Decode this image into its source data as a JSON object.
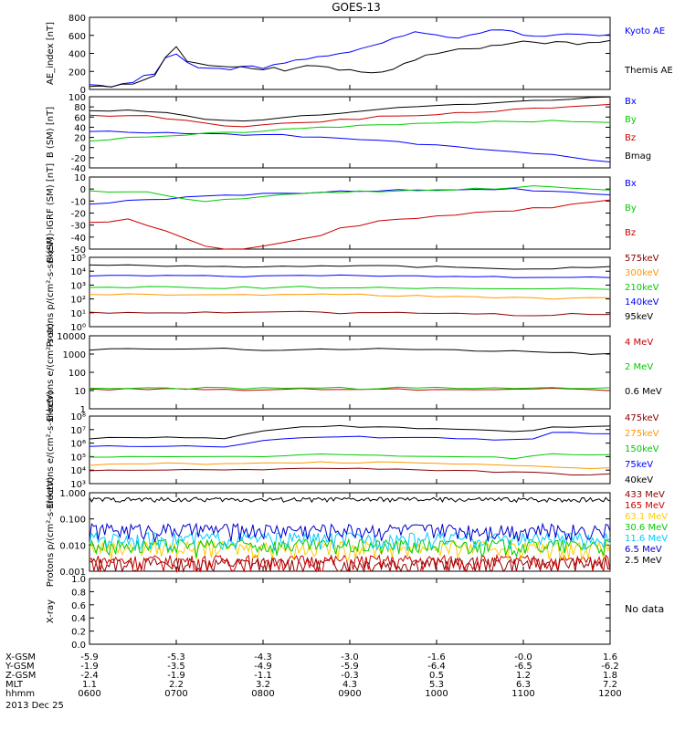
{
  "title": "GOES-13",
  "date_label": "2013 Dec 25",
  "no_data_label": "No data",
  "chart_data": [
    {
      "type": "line",
      "ylabel": "AE_index [nT]",
      "ylim": [
        0,
        800
      ],
      "yscale": "linear",
      "yticks": [
        "0",
        "200",
        "400",
        "600",
        "800"
      ],
      "series": [
        {
          "name": "Kyoto AE",
          "color": "#0000ff",
          "values": [
            50,
            40,
            35,
            60,
            80,
            150,
            180,
            350,
            390,
            300,
            250,
            240,
            230,
            220,
            260,
            250,
            240,
            280,
            300,
            320,
            330,
            360,
            380,
            400,
            420,
            450,
            480,
            520,
            560,
            600,
            640,
            620,
            600,
            580,
            560,
            600,
            620,
            650,
            660,
            640,
            610,
            600,
            590,
            600,
            610,
            620,
            600,
            600,
            610
          ]
        },
        {
          "name": "Themis AE",
          "color": "#000000",
          "values": [
            35,
            30,
            30,
            50,
            70,
            100,
            150,
            350,
            470,
            320,
            280,
            260,
            250,
            240,
            250,
            230,
            220,
            240,
            200,
            230,
            260,
            270,
            240,
            220,
            210,
            200,
            180,
            200,
            230,
            280,
            330,
            380,
            400,
            420,
            440,
            450,
            460,
            480,
            500,
            520,
            530,
            520,
            510,
            530,
            520,
            500,
            520,
            530,
            540
          ]
        }
      ]
    },
    {
      "type": "line",
      "ylabel": "B (SM) [nT]",
      "ylim": [
        -40,
        100
      ],
      "yscale": "linear",
      "yticks": [
        "-40",
        "-20",
        "0",
        "20",
        "40",
        "60",
        "80",
        "100"
      ],
      "series": [
        {
          "name": "Bx",
          "color": "#0000ff",
          "values": [
            32,
            31,
            30,
            30,
            29,
            28,
            28,
            27,
            26,
            25,
            24,
            22,
            20,
            18,
            16,
            13,
            10,
            7,
            4,
            1,
            -2,
            -5,
            -8,
            -11,
            -15,
            -20,
            -25,
            -30
          ]
        },
        {
          "name": "By",
          "color": "#00cc00",
          "values": [
            14,
            17,
            19,
            21,
            23,
            25,
            27,
            29,
            31,
            33,
            35,
            37,
            39,
            41,
            43,
            45,
            46,
            47,
            48,
            49,
            50,
            51,
            52,
            52,
            53,
            52,
            50,
            48
          ]
        },
        {
          "name": "Bz",
          "color": "#cc0000",
          "values": [
            62,
            63,
            64,
            62,
            58,
            54,
            48,
            44,
            42,
            44,
            47,
            50,
            52,
            55,
            57,
            60,
            62,
            64,
            66,
            68,
            70,
            72,
            74,
            76,
            78,
            80,
            82,
            84
          ]
        },
        {
          "name": "Bmag",
          "color": "#000000",
          "values": [
            72,
            73,
            74,
            72,
            68,
            63,
            57,
            54,
            53,
            55,
            58,
            62,
            65,
            68,
            72,
            75,
            78,
            80,
            82,
            84,
            86,
            88,
            90,
            92,
            94,
            96,
            98,
            99
          ]
        }
      ]
    },
    {
      "type": "line",
      "ylabel": "B (SM)-IGRF (SM) [nT]",
      "ylim": [
        -50,
        10
      ],
      "yscale": "linear",
      "yticks": [
        "-50",
        "-40",
        "-30",
        "-20",
        "-10",
        "0",
        "10"
      ],
      "series": [
        {
          "name": "Bx",
          "color": "#0000ff",
          "values": [
            -12,
            -11,
            -10,
            -9,
            -8,
            -7,
            -6,
            -5,
            -5,
            -4,
            -4,
            -3,
            -3,
            -2,
            -2,
            -2,
            -1,
            -1,
            -1,
            -1,
            -1,
            0,
            0,
            -1,
            -2,
            -3,
            -4,
            -5
          ]
        },
        {
          "name": "By",
          "color": "#00cc00",
          "values": [
            -2,
            -2,
            -2,
            -3,
            -6,
            -9,
            -10,
            -9,
            -8,
            -6,
            -5,
            -4,
            -3,
            -3,
            -2,
            -2,
            -1,
            -1,
            -1,
            -1,
            0,
            0,
            1,
            2,
            2,
            1,
            0,
            -1
          ]
        },
        {
          "name": "Bz",
          "color": "#cc0000",
          "values": [
            -28,
            -27,
            -25,
            -30,
            -35,
            -42,
            -48,
            -51,
            -50,
            -48,
            -45,
            -41,
            -38,
            -33,
            -30,
            -27,
            -25,
            -24,
            -23,
            -22,
            -20,
            -19,
            -18,
            -16,
            -15,
            -13,
            -11,
            -9
          ]
        }
      ]
    },
    {
      "type": "line",
      "ylabel": "Protons p/(cm²-s-sr-keV)",
      "ylim": [
        0,
        5
      ],
      "yscale": "log",
      "log_range": [
        1,
        100000
      ],
      "yticks": [
        "10⁰",
        "10¹",
        "10²",
        "10³",
        "10⁴",
        "10⁵"
      ],
      "series": [
        {
          "name": "575keV",
          "color": "#8b0000",
          "values": [
            10,
            10,
            11,
            11,
            10,
            10,
            10,
            10,
            10,
            10,
            11,
            11,
            11,
            10,
            10,
            10,
            10,
            10,
            9,
            9,
            8,
            8,
            7,
            7,
            7,
            8,
            8,
            8
          ]
        },
        {
          "name": "300keV",
          "color": "#ff9900",
          "values": [
            200,
            210,
            220,
            220,
            210,
            200,
            200,
            190,
            190,
            190,
            200,
            210,
            210,
            200,
            200,
            190,
            180,
            170,
            160,
            150,
            140,
            130,
            120,
            110,
            110,
            120,
            130,
            130
          ]
        },
        {
          "name": "210keV",
          "color": "#00cc00",
          "values": [
            700,
            720,
            730,
            720,
            700,
            680,
            660,
            650,
            650,
            660,
            680,
            700,
            700,
            690,
            680,
            660,
            640,
            620,
            600,
            580,
            560,
            540,
            520,
            500,
            500,
            520,
            540,
            550
          ]
        },
        {
          "name": "140keV",
          "color": "#0000ff",
          "values": [
            5000,
            5100,
            5200,
            5100,
            5000,
            4800,
            4600,
            4500,
            4500,
            4600,
            4800,
            5000,
            5000,
            4900,
            4800,
            4700,
            4600,
            4500,
            4300,
            4100,
            4000,
            3800,
            3600,
            3500,
            3500,
            3700,
            3900,
            4000
          ]
        },
        {
          "name": "95keV",
          "color": "#000000",
          "values": [
            25000,
            26000,
            27000,
            26000,
            25000,
            24000,
            23000,
            22000,
            22000,
            23000,
            24000,
            25000,
            25000,
            24000,
            23000,
            23000,
            22000,
            21000,
            20000,
            19000,
            18000,
            17000,
            16000,
            15000,
            15000,
            17000,
            18000,
            19000
          ]
        }
      ]
    },
    {
      "type": "line",
      "ylabel": "Electrons e/(cm²-s-sr)",
      "ylim": [
        0,
        4
      ],
      "yscale": "log",
      "log_range": [
        1,
        10000
      ],
      "yticks": [
        "1",
        "10",
        "100",
        "1000",
        "10000"
      ],
      "series": [
        {
          "name": "4 MeV",
          "color": "#cc0000",
          "values": [
            12,
            11,
            12,
            11,
            12,
            11,
            12,
            12,
            11,
            12,
            11,
            12,
            11,
            12,
            11,
            12,
            12,
            11,
            12,
            11,
            12,
            11,
            12,
            11,
            12,
            11,
            12,
            11
          ]
        },
        {
          "name": "2 MeV",
          "color": "#00cc00",
          "values": [
            14,
            13,
            14,
            13,
            14,
            13,
            14,
            14,
            13,
            14,
            13,
            14,
            13,
            14,
            13,
            14,
            14,
            13,
            14,
            13,
            14,
            13,
            14,
            13,
            14,
            13,
            14,
            13
          ]
        },
        {
          "name": "0.6 MeV",
          "color": "#000000",
          "values": [
            1800,
            1900,
            2000,
            2000,
            2000,
            2100,
            2000,
            1900,
            1800,
            1700,
            1600,
            1600,
            1700,
            1800,
            1900,
            2000,
            2000,
            1900,
            1800,
            1700,
            1600,
            1500,
            1400,
            1300,
            1200,
            1100,
            1000,
            1000
          ]
        }
      ]
    },
    {
      "type": "line",
      "ylabel": "Electrons e/(cm²-s-sr-keV)",
      "ylim": [
        2,
        8
      ],
      "yscale": "log",
      "log_range": [
        100,
        100000000
      ],
      "yticks": [
        "10³",
        "10⁴",
        "10⁵",
        "10⁶",
        "10⁷",
        "10⁸"
      ],
      "series": [
        {
          "name": "475keV",
          "color": "#8b0000",
          "values": [
            1500,
            1600,
            1700,
            1800,
            1800,
            1800,
            1700,
            1700,
            1800,
            1900,
            2000,
            2100,
            2200,
            2200,
            2100,
            2000,
            1900,
            1800,
            1700,
            1500,
            1300,
            1100,
            1000,
            900,
            800,
            700,
            700,
            700
          ]
        },
        {
          "name": "275keV",
          "color": "#ff9900",
          "values": [
            5000,
            5200,
            5500,
            5800,
            6000,
            6000,
            5800,
            5700,
            6000,
            6500,
            7000,
            7500,
            8000,
            8000,
            7800,
            7500,
            7000,
            6500,
            6000,
            5500,
            5000,
            4500,
            4000,
            3500,
            3000,
            2500,
            2500,
            2500
          ]
        },
        {
          "name": "150keV",
          "color": "#00cc00",
          "values": [
            20000,
            21000,
            22000,
            23000,
            24000,
            24000,
            23000,
            22000,
            24000,
            27000,
            30000,
            33000,
            36000,
            37000,
            36000,
            34000,
            32000,
            30000,
            28000,
            25000,
            22000,
            20000,
            18000,
            30000,
            50000,
            45000,
            40000,
            38000
          ]
        },
        {
          "name": "75keV",
          "color": "#0000ff",
          "values": [
            200000,
            210000,
            220000,
            230000,
            230000,
            220000,
            210000,
            200000,
            300000,
            600000,
            1000000,
            1300000,
            1500000,
            1600000,
            1500000,
            1400000,
            1300000,
            1200000,
            1100000,
            1000000,
            900000,
            800000,
            700000,
            1000000,
            3000000,
            3500000,
            3000000,
            2800000
          ]
        },
        {
          "name": "40keV",
          "color": "#000000",
          "values": [
            1000000,
            1100000,
            1200000,
            1200000,
            1200000,
            1100000,
            1000000,
            1000000,
            2000000,
            5000000,
            8000000,
            10000000,
            12000000,
            13000000,
            12000000,
            11000000,
            10000000,
            9000000,
            8000000,
            7000000,
            6000000,
            5000000,
            4000000,
            6000000,
            10000000,
            12000000,
            13000000,
            14000000
          ]
        }
      ]
    },
    {
      "type": "line",
      "ylabel": "Protons p/(cm²-s-sr-keV)",
      "ylim": [
        -3,
        0.5
      ],
      "yscale": "log",
      "log_range": [
        0.001,
        3
      ],
      "yticks": [
        "0.001",
        "0.010",
        "0.100",
        "1.000"
      ],
      "series": [
        {
          "name": "433 MeV",
          "color": "#8b0000",
          "base": 0.0015
        },
        {
          "name": "165 MeV",
          "color": "#cc0000",
          "base": 0.002
        },
        {
          "name": "63.1 MeV",
          "color": "#ffcc00",
          "base": 0.008
        },
        {
          "name": "30.6 MeV",
          "color": "#00cc00",
          "base": 0.01
        },
        {
          "name": "11.6 MeV",
          "color": "#00ccff",
          "base": 0.02
        },
        {
          "name": "6.5 MeV",
          "color": "#0000cc",
          "base": 0.05
        },
        {
          "name": "2.5 MeV",
          "color": "#000000",
          "base": 1.5
        }
      ]
    },
    {
      "type": "line",
      "ylabel": "X-ray",
      "ylim": [
        0,
        1
      ],
      "yscale": "linear",
      "yticks": [
        "0.0",
        "0.2",
        "0.4",
        "0.6",
        "0.8",
        "1.0"
      ],
      "series": []
    }
  ],
  "x_axis": {
    "row_labels": [
      "X-GSM",
      "Y-GSM",
      "Z-GSM",
      "MLT",
      "hhmm"
    ],
    "columns": [
      [
        "-5.9",
        "-1.9",
        "-2.4",
        "1.1",
        "0600"
      ],
      [
        "-5.3",
        "-3.5",
        "-1.9",
        "2.2",
        "0700"
      ],
      [
        "-4.3",
        "-4.9",
        "-1.1",
        "3.2",
        "0800"
      ],
      [
        "-3.0",
        "-5.9",
        "-0.3",
        "4.3",
        "0900"
      ],
      [
        "-1.6",
        "-6.4",
        "0.5",
        "5.3",
        "1000"
      ],
      [
        "-0.0",
        "-6.5",
        "1.2",
        "6.3",
        "1100"
      ],
      [
        "1.6",
        "-6.2",
        "1.8",
        "7.2",
        "1200"
      ]
    ]
  }
}
